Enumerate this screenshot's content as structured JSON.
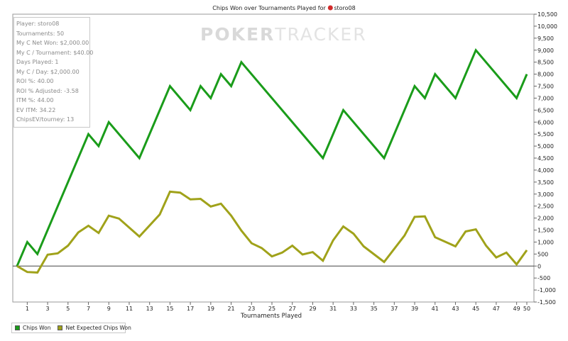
{
  "chart_data": {
    "type": "line",
    "title": "Chips Won over Tournaments Played for",
    "player_name": "storo08",
    "xlabel": "Tournaments Played",
    "ylabel": "",
    "xlim": [
      0,
      50
    ],
    "ylim": [
      -1500,
      10500
    ],
    "x_ticks": [
      1,
      3,
      5,
      7,
      9,
      11,
      13,
      15,
      17,
      19,
      21,
      23,
      25,
      27,
      29,
      31,
      33,
      35,
      37,
      39,
      41,
      43,
      45,
      47,
      49,
      50
    ],
    "y_ticks": [
      -1500,
      -1000,
      -500,
      0,
      500,
      1000,
      1500,
      2000,
      2500,
      3000,
      3500,
      4000,
      4500,
      5000,
      5500,
      6000,
      6500,
      7000,
      7500,
      8000,
      8500,
      9000,
      9500,
      10000,
      10500
    ],
    "y_tick_labels": [
      "-1,500",
      "-1,000",
      "-500",
      "0",
      "500",
      "1,000",
      "1,500",
      "2,000",
      "2,500",
      "3,000",
      "3,500",
      "4,000",
      "4,500",
      "5,000",
      "5,500",
      "6,000",
      "6,500",
      "7,000",
      "7,500",
      "8,000",
      "8,500",
      "9,000",
      "9,500",
      "10,000",
      "10,500"
    ],
    "grid": false,
    "legend_position": "bottom-left",
    "series": [
      {
        "name": "Chips Won",
        "color": "#1a9c1a",
        "points": [
          [
            0,
            0
          ],
          [
            1,
            1000
          ],
          [
            2,
            500
          ],
          [
            7,
            5500
          ],
          [
            8,
            5000
          ],
          [
            9,
            6000
          ],
          [
            12,
            4500
          ],
          [
            15,
            7500
          ],
          [
            17,
            6500
          ],
          [
            18,
            7500
          ],
          [
            19,
            7000
          ],
          [
            20,
            8000
          ],
          [
            21,
            7500
          ],
          [
            22,
            8500
          ],
          [
            30,
            4500
          ],
          [
            32,
            6500
          ],
          [
            36,
            4500
          ],
          [
            39,
            7500
          ],
          [
            40,
            7000
          ],
          [
            41,
            8000
          ],
          [
            43,
            7000
          ],
          [
            45,
            9000
          ],
          [
            49,
            7000
          ],
          [
            50,
            8000
          ]
        ]
      },
      {
        "name": "Net Expected Chips Won",
        "color": "#a0a21a",
        "points": [
          [
            0,
            0
          ],
          [
            1,
            -250
          ],
          [
            2,
            -270
          ],
          [
            3,
            470
          ],
          [
            4,
            530
          ],
          [
            5,
            850
          ],
          [
            6,
            1400
          ],
          [
            7,
            1680
          ],
          [
            8,
            1380
          ],
          [
            9,
            2100
          ],
          [
            10,
            1980
          ],
          [
            12,
            1230
          ],
          [
            14,
            2150
          ],
          [
            15,
            3100
          ],
          [
            16,
            3060
          ],
          [
            17,
            2780
          ],
          [
            18,
            2800
          ],
          [
            19,
            2480
          ],
          [
            20,
            2600
          ],
          [
            21,
            2100
          ],
          [
            22,
            1480
          ],
          [
            23,
            950
          ],
          [
            24,
            750
          ],
          [
            25,
            400
          ],
          [
            26,
            560
          ],
          [
            27,
            850
          ],
          [
            28,
            480
          ],
          [
            29,
            580
          ],
          [
            30,
            220
          ],
          [
            31,
            1070
          ],
          [
            32,
            1650
          ],
          [
            33,
            1350
          ],
          [
            34,
            820
          ],
          [
            36,
            170
          ],
          [
            38,
            1270
          ],
          [
            39,
            2050
          ],
          [
            40,
            2070
          ],
          [
            41,
            1200
          ],
          [
            43,
            820
          ],
          [
            44,
            1440
          ],
          [
            45,
            1530
          ],
          [
            46,
            850
          ],
          [
            47,
            360
          ],
          [
            48,
            560
          ],
          [
            49,
            70
          ],
          [
            50,
            660
          ]
        ]
      }
    ]
  },
  "stats": [
    "Player: storo08",
    "Tournaments: 50",
    "My C Net Won: $2,000.00",
    "My C / Tournament: $40.00",
    "Days Played: 1",
    "My C / Day: $2,000.00",
    "ROI %: 40.00",
    "ROI % Adjusted: -3.58",
    "ITM %: 44.00",
    "EV ITM: 34.22",
    "ChipsEV/tourney: 13"
  ],
  "watermark": {
    "part1": "POKER",
    "part2": "TRACKER"
  },
  "colors": {
    "chips_won": "#1a9c1a",
    "net_expected": "#a0a21a",
    "chip_logo": "#d12a2a"
  }
}
